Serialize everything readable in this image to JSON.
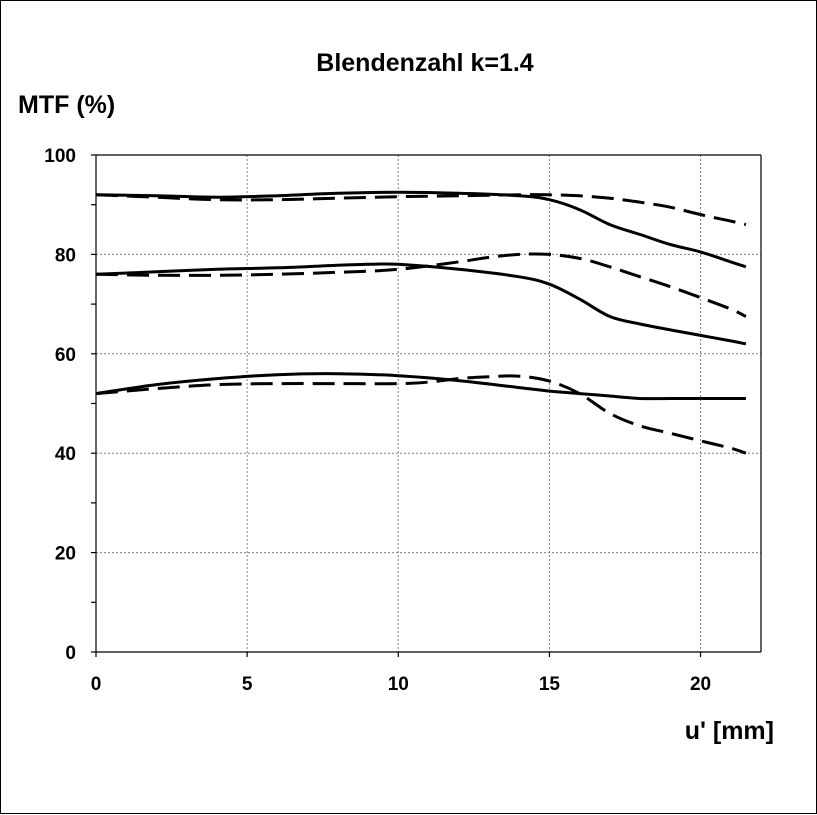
{
  "chart_data": {
    "type": "line",
    "title": "Blendenzahl k=1.4",
    "xlabel": "u' [mm]",
    "ylabel": "MTF (%)",
    "xlim": [
      0,
      22
    ],
    "ylim": [
      0,
      100
    ],
    "xticks": [
      0,
      5,
      10,
      15,
      20
    ],
    "yticks": [
      0,
      20,
      40,
      60,
      80,
      100
    ],
    "y_minor_step": 10,
    "grid": true,
    "line_color": "#000000",
    "series": [
      {
        "style": "solid",
        "x": [
          0,
          2,
          4,
          6,
          8,
          10,
          12,
          14,
          15,
          16,
          17,
          18,
          19,
          20,
          21,
          21.5
        ],
        "y": [
          92,
          91.8,
          91.5,
          91.8,
          92.3,
          92.5,
          92.3,
          91.8,
          91,
          89,
          86,
          84,
          82,
          80.5,
          78.5,
          77.5
        ]
      },
      {
        "style": "dashed",
        "x": [
          0,
          2,
          4,
          6,
          8,
          10,
          12,
          14,
          15,
          16,
          17,
          18,
          19,
          20,
          21,
          21.5
        ],
        "y": [
          92,
          91.5,
          91,
          91,
          91.3,
          91.6,
          91.8,
          92,
          92,
          91.8,
          91.3,
          90.5,
          89.5,
          88,
          86.7,
          86
        ]
      },
      {
        "style": "solid",
        "x": [
          0,
          2,
          4,
          6,
          8,
          9,
          10,
          12,
          14,
          15,
          16,
          17,
          18,
          19,
          20,
          21,
          21.5
        ],
        "y": [
          76,
          76.5,
          77,
          77.3,
          77.8,
          78,
          78,
          77,
          75.5,
          74,
          71,
          67.5,
          66,
          64.8,
          63.7,
          62.6,
          62
        ]
      },
      {
        "style": "dashed",
        "x": [
          0,
          2,
          4,
          6,
          8,
          10,
          12,
          13,
          14,
          15,
          16,
          17,
          18,
          19,
          20,
          21,
          21.5
        ],
        "y": [
          76,
          75.8,
          75.8,
          76,
          76.4,
          77,
          78.5,
          79.4,
          80,
          80,
          79.2,
          77.5,
          75.5,
          73.5,
          71.3,
          69,
          67.5
        ]
      },
      {
        "style": "solid",
        "x": [
          0,
          2,
          4,
          6,
          8,
          10,
          12,
          14,
          15,
          16,
          17,
          18,
          19,
          20,
          21,
          21.5
        ],
        "y": [
          52,
          53.8,
          55,
          55.8,
          56,
          55.6,
          54.6,
          53.2,
          52.5,
          52,
          51.5,
          51,
          51,
          51,
          51,
          51
        ]
      },
      {
        "style": "dashed",
        "x": [
          0,
          2,
          4,
          6,
          8,
          10,
          11,
          12,
          13,
          14,
          15,
          16,
          17,
          18,
          19,
          20,
          21,
          21.5
        ],
        "y": [
          52,
          53,
          53.8,
          54,
          54,
          54,
          54.3,
          55,
          55.4,
          55.5,
          54.5,
          52,
          48,
          45.5,
          44,
          42.5,
          41,
          40
        ]
      }
    ]
  }
}
